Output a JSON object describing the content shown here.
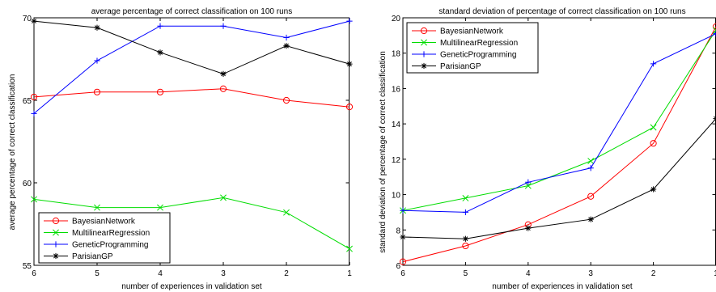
{
  "chart_data": [
    {
      "type": "line",
      "title": "average percentage of correct classification on 100 runs",
      "xlabel": "number of experiences in validation set",
      "ylabel": "average percentage of correct classification",
      "x": [
        6,
        5,
        4,
        3,
        2,
        1
      ],
      "x_ticks": [
        "6",
        "5",
        "4",
        "3",
        "2",
        "1"
      ],
      "y_ticks": [
        "55",
        "60",
        "65",
        "70"
      ],
      "ylim": [
        55,
        70
      ],
      "grid": false,
      "legend_position": "lower-left",
      "series": [
        {
          "name": "BayesianNetwork",
          "color": "#ff0000",
          "marker": "circle",
          "values": [
            65.2,
            65.5,
            65.5,
            65.7,
            65.0,
            64.6
          ]
        },
        {
          "name": "MultilinearRegression",
          "color": "#00dd00",
          "marker": "x",
          "values": [
            59.0,
            58.5,
            58.5,
            59.1,
            58.2,
            56.0
          ]
        },
        {
          "name": "GeneticProgramming",
          "color": "#0000ff",
          "marker": "plus",
          "values": [
            64.2,
            67.4,
            69.5,
            69.5,
            68.8,
            69.8
          ]
        },
        {
          "name": "ParisianGP",
          "color": "#000000",
          "marker": "star",
          "values": [
            69.8,
            69.4,
            67.9,
            66.6,
            68.3,
            67.2
          ]
        }
      ]
    },
    {
      "type": "line",
      "title": "standard deviation of percentage of correct classification on 100 runs",
      "xlabel": "number of experiences in validation set",
      "ylabel": "standard deviation of percentage of correct classification",
      "x": [
        6,
        5,
        4,
        3,
        2,
        1
      ],
      "x_ticks": [
        "6",
        "5",
        "4",
        "3",
        "2",
        "1"
      ],
      "y_ticks": [
        "6",
        "8",
        "10",
        "12",
        "14",
        "16",
        "18",
        "20"
      ],
      "ylim": [
        6,
        20
      ],
      "grid": false,
      "legend_position": "top-left",
      "series": [
        {
          "name": "BayesianNetwork",
          "color": "#ff0000",
          "marker": "circle",
          "values": [
            6.2,
            7.1,
            8.3,
            9.9,
            12.9,
            19.5
          ]
        },
        {
          "name": "MultilinearRegression",
          "color": "#00dd00",
          "marker": "x",
          "values": [
            9.1,
            9.8,
            10.5,
            11.9,
            13.8,
            19.3
          ]
        },
        {
          "name": "GeneticProgramming",
          "color": "#0000ff",
          "marker": "plus",
          "values": [
            9.1,
            9.0,
            10.7,
            11.5,
            17.4,
            19.1
          ]
        },
        {
          "name": "ParisianGP",
          "color": "#000000",
          "marker": "star",
          "values": [
            7.6,
            7.5,
            8.1,
            8.6,
            10.3,
            14.3
          ]
        }
      ]
    }
  ]
}
